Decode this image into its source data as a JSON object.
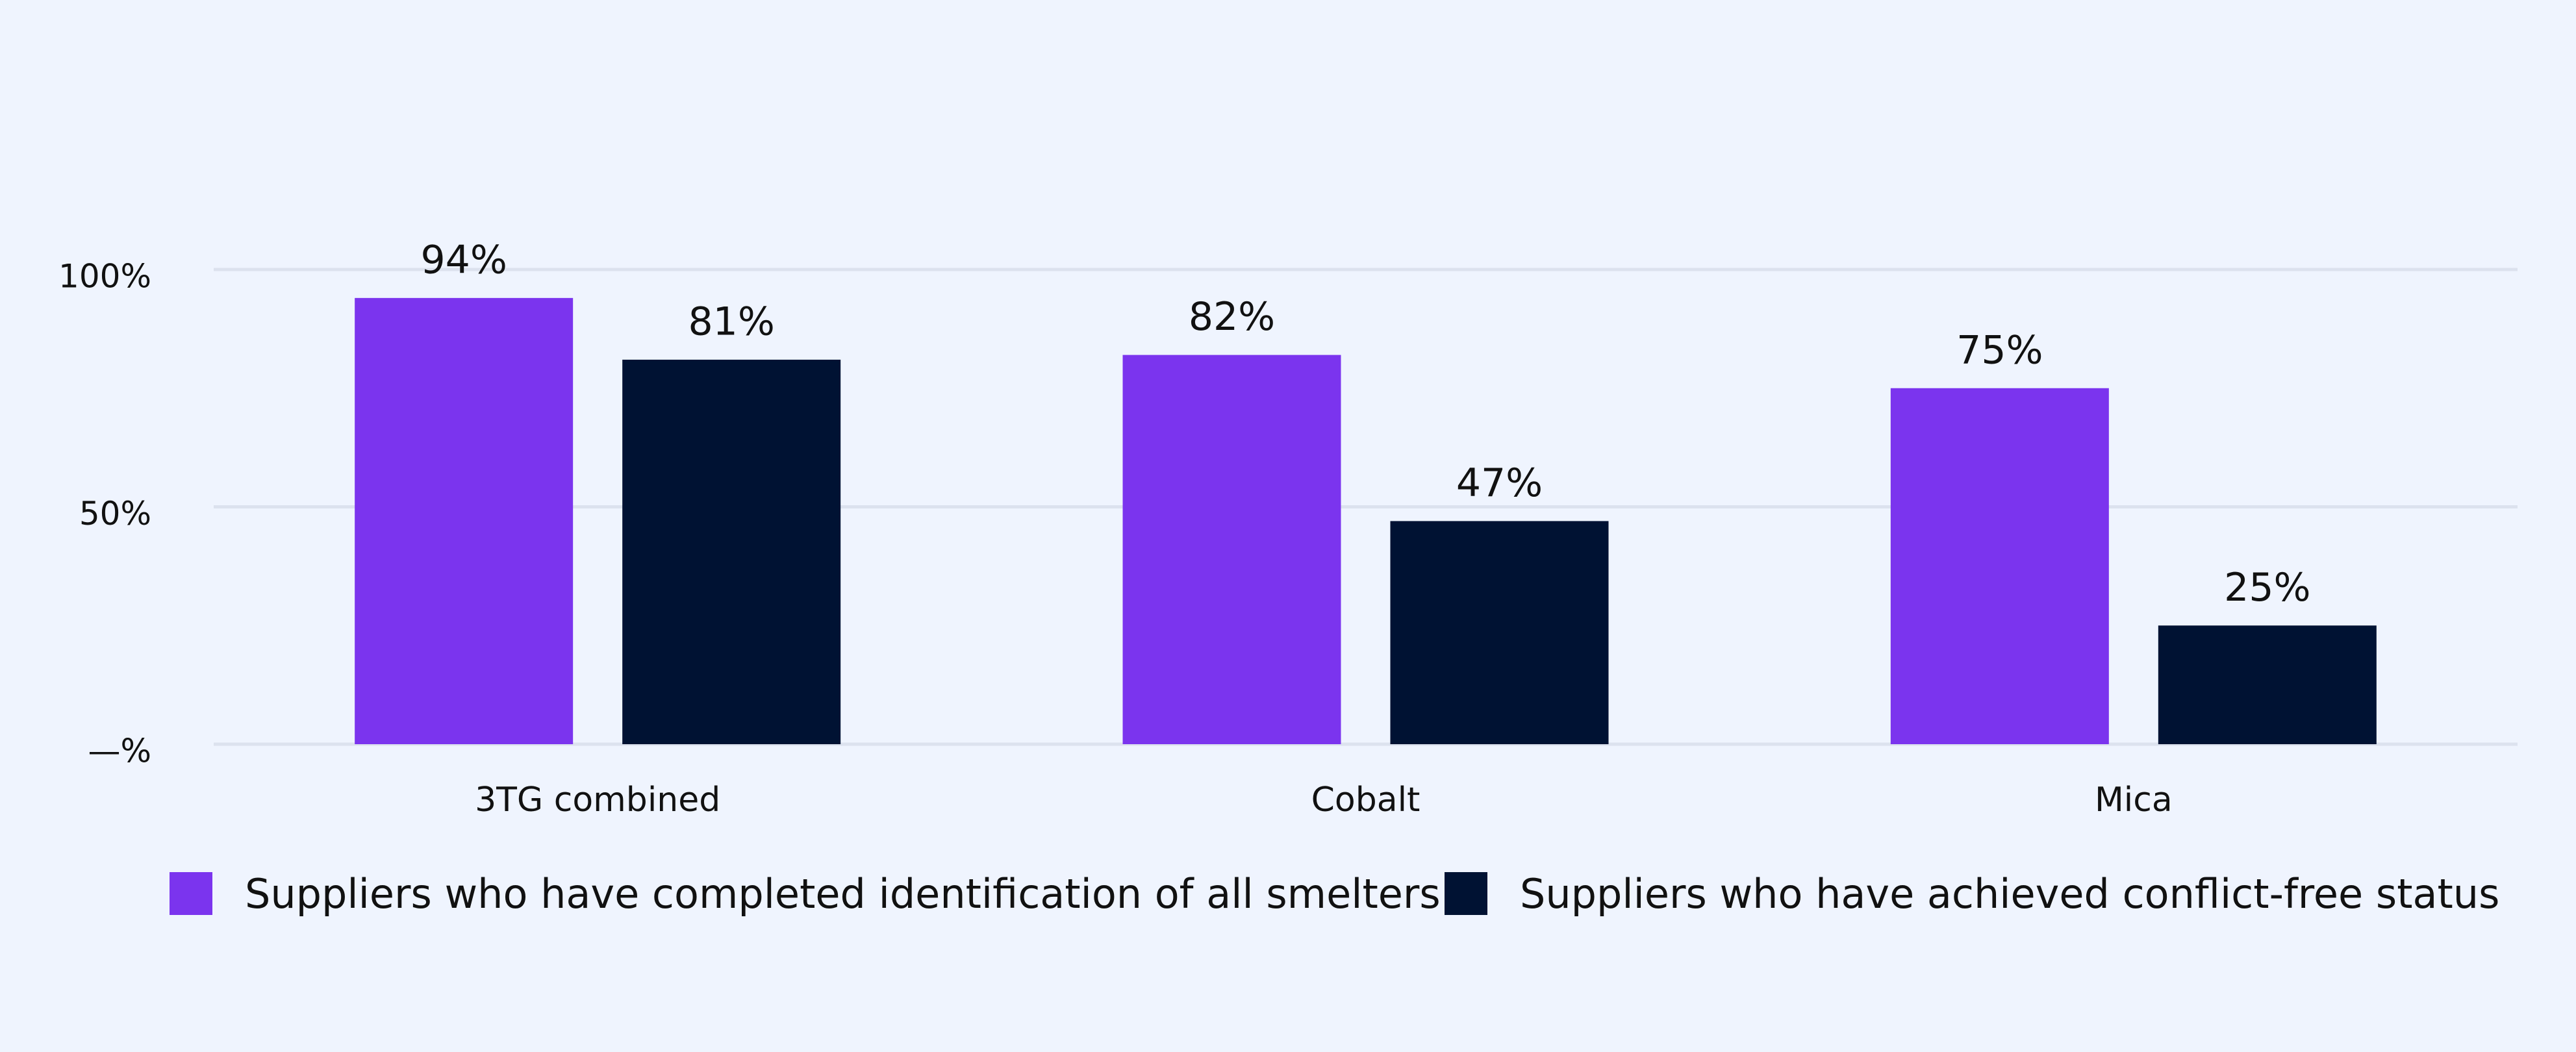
{
  "chart_data": {
    "type": "bar",
    "categories": [
      "3TG combined",
      "Cobalt",
      "Mica"
    ],
    "series": [
      {
        "name": "Suppliers who have completed identification of all smelters",
        "color": "#7b34ee",
        "values": [
          94,
          82,
          75
        ],
        "value_labels": [
          "94%",
          "82%",
          "75%"
        ]
      },
      {
        "name": "Suppliers who have achieved conflict-free status",
        "color": "#001233",
        "values": [
          81,
          47,
          25
        ],
        "value_labels": [
          "81%",
          "47%",
          "25%"
        ]
      }
    ],
    "ylim": [
      0,
      100
    ],
    "yticks": [
      {
        "value": 0,
        "label": "—%"
      },
      {
        "value": 50,
        "label": "50%"
      },
      {
        "value": 100,
        "label": "100%"
      }
    ],
    "grid": true
  }
}
